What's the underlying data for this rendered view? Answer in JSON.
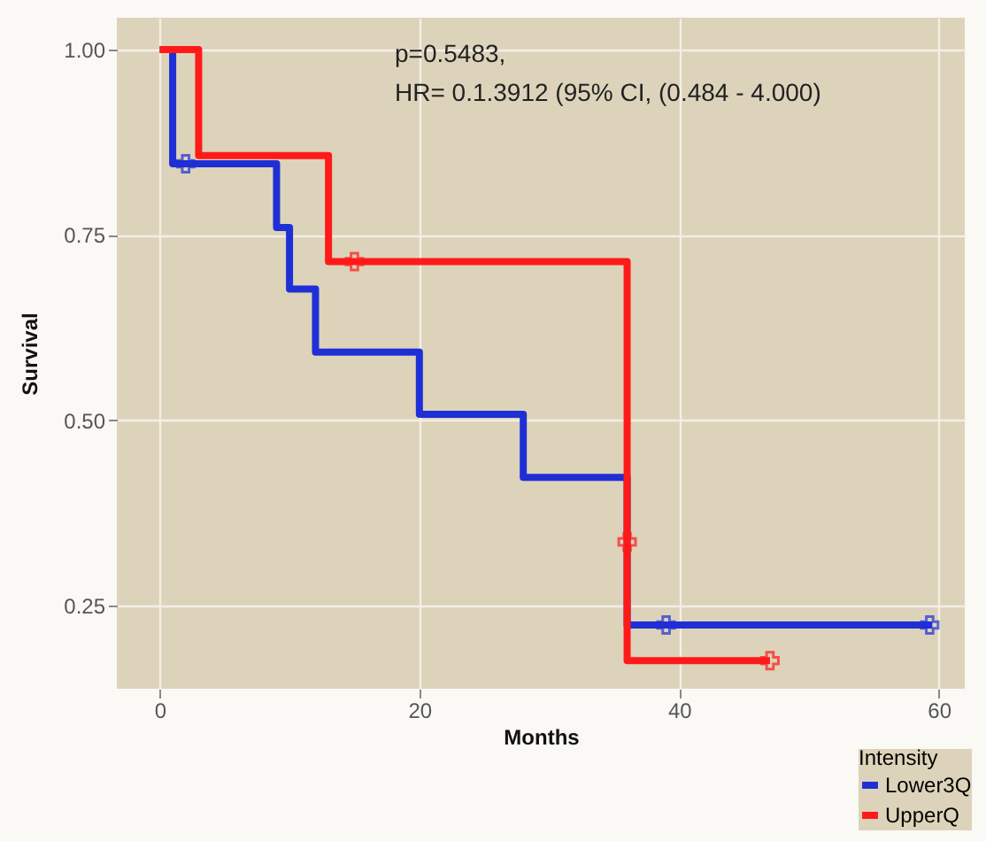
{
  "chart_data": {
    "type": "step",
    "xlabel": "Months",
    "ylabel": "Survival",
    "legend_title": "Intensity",
    "annotations": [
      "p=0.5483,",
      "HR= 0.1.3912 (95% CI, (0.484 -  4.000)"
    ],
    "xlim": [
      -3.3,
      62
    ],
    "xticks": [
      0,
      20,
      40,
      60
    ],
    "ylim": [
      0.138,
      1.043
    ],
    "yticks": [
      0.25,
      {
        "value": 0.5,
        "label": "0.50"
      },
      0.75,
      {
        "value": 1,
        "label": "1.00"
      }
    ],
    "grid": true,
    "legend": "bottom right",
    "series": [
      {
        "name": "Lower3Q",
        "color": "#1f2fd6",
        "type": "step",
        "x": [
          0,
          1,
          9,
          10,
          12,
          20,
          28,
          36,
          59.5
        ],
        "values": [
          1,
          0.846,
          0.76,
          0.677,
          0.592,
          0.508,
          0.423,
          0.224,
          0.224
        ]
      },
      {
        "name": "UpperQ",
        "color": "#ff1a1a",
        "type": "step",
        "x": [
          0,
          3,
          13,
          36,
          47
        ],
        "values": [
          1,
          0.857,
          0.714,
          0.176,
          0.176
        ]
      },
      {
        "color": "#1f2fd6",
        "type": "scatter",
        "marker": "cross",
        "x": [
          2,
          39,
          59.3
        ],
        "values": [
          0.846,
          0.224,
          0.224
        ]
      },
      {
        "color": "#ff1a1a",
        "type": "scatter",
        "marker": "cross",
        "x": [
          15,
          36,
          47
        ],
        "values": [
          0.714,
          0.336,
          0.176
        ]
      }
    ]
  }
}
